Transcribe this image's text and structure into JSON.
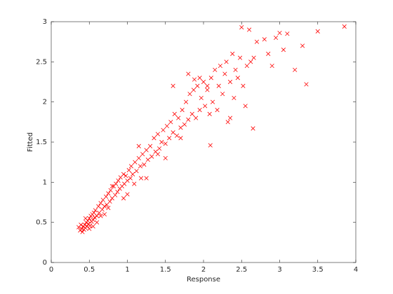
{
  "chart_data": {
    "type": "scatter",
    "marker": "x",
    "color": "#ff0000",
    "x_label": "Response",
    "y_label": "Fitted",
    "xlim": [
      0,
      4
    ],
    "xticks": [
      0,
      0.5,
      1,
      1.5,
      2,
      2.5,
      3,
      3.5,
      4
    ],
    "ylim": [
      0,
      3
    ],
    "yticks": [
      0,
      0.5,
      1,
      1.5,
      2,
      2.5,
      3
    ],
    "grid": false,
    "x": [
      0.36,
      0.38,
      0.4,
      0.41,
      0.42,
      0.43,
      0.44,
      0.45,
      0.46,
      0.47,
      0.48,
      0.49,
      0.5,
      0.51,
      0.52,
      0.53,
      0.54,
      0.55,
      0.56,
      0.57,
      0.58,
      0.6,
      0.62,
      0.63,
      0.65,
      0.67,
      0.68,
      0.7,
      0.72,
      0.73,
      0.75,
      0.77,
      0.78,
      0.8,
      0.82,
      0.84,
      0.85,
      0.87,
      0.88,
      0.9,
      0.91,
      0.93,
      0.95,
      0.96,
      0.98,
      1.0,
      1.02,
      1.04,
      1.05,
      1.07,
      1.09,
      1.1,
      1.12,
      1.15,
      1.17,
      1.18,
      1.2,
      1.22,
      1.25,
      1.27,
      1.3,
      1.32,
      1.35,
      1.37,
      1.4,
      1.42,
      1.45,
      1.47,
      1.5,
      1.52,
      1.55,
      1.57,
      1.6,
      1.62,
      1.65,
      1.67,
      1.7,
      1.72,
      1.75,
      1.77,
      1.8,
      1.82,
      1.85,
      1.87,
      1.9,
      1.92,
      1.95,
      1.97,
      2.0,
      2.02,
      2.05,
      2.08,
      2.1,
      2.12,
      2.15,
      2.18,
      2.2,
      2.22,
      2.25,
      2.28,
      2.3,
      2.32,
      2.35,
      2.38,
      2.4,
      2.42,
      2.45,
      2.48,
      2.5,
      2.52,
      2.55,
      2.57,
      2.6,
      2.62,
      2.65,
      2.66,
      2.7,
      2.8,
      2.85,
      2.9,
      2.95,
      3.0,
      3.05,
      3.1,
      3.2,
      3.3,
      3.35,
      3.5,
      3.85,
      2.09,
      2.35,
      1.6,
      1.8,
      1.25,
      1.0,
      0.95,
      0.7,
      0.6,
      1.5,
      1.4,
      1.15,
      1.7,
      1.95,
      2.05,
      1.88,
      0.8,
      0.55,
      0.45,
      0.5,
      0.39,
      0.65,
      0.75
    ],
    "values": [
      0.44,
      0.4,
      0.42,
      0.38,
      0.45,
      0.41,
      0.47,
      0.43,
      0.5,
      0.45,
      0.52,
      0.48,
      0.55,
      0.46,
      0.58,
      0.51,
      0.6,
      0.53,
      0.62,
      0.56,
      0.65,
      0.58,
      0.7,
      0.62,
      0.74,
      0.66,
      0.78,
      0.7,
      0.82,
      0.72,
      0.86,
      0.76,
      0.9,
      0.8,
      0.95,
      0.84,
      0.98,
      0.88,
      1.02,
      0.92,
      1.06,
      0.95,
      1.1,
      0.98,
      1.08,
      1.02,
      1.15,
      1.05,
      1.2,
      1.1,
      0.98,
      1.25,
      1.14,
      1.3,
      1.2,
      1.05,
      1.35,
      1.22,
      1.4,
      1.28,
      1.45,
      1.32,
      1.55,
      1.38,
      1.6,
      1.42,
      1.5,
      1.65,
      1.48,
      1.7,
      1.55,
      1.75,
      1.62,
      1.85,
      1.58,
      1.8,
      1.68,
      1.9,
      1.72,
      2.0,
      1.78,
      2.1,
      1.85,
      2.15,
      1.8,
      2.2,
      1.9,
      2.05,
      2.25,
      1.95,
      2.15,
      1.85,
      2.3,
      2.0,
      2.4,
      1.9,
      2.2,
      2.45,
      2.1,
      2.35,
      2.5,
      1.75,
      2.25,
      2.6,
      2.05,
      2.4,
      2.3,
      2.55,
      2.93,
      2.2,
      1.95,
      2.45,
      2.9,
      2.5,
      1.67,
      2.55,
      2.75,
      2.78,
      2.6,
      2.45,
      2.8,
      2.86,
      2.65,
      2.85,
      2.4,
      2.7,
      2.22,
      2.88,
      2.94,
      1.46,
      1.8,
      2.2,
      2.35,
      1.05,
      0.85,
      0.8,
      0.6,
      0.5,
      1.3,
      1.35,
      1.45,
      1.55,
      2.3,
      2.2,
      2.28,
      0.95,
      0.45,
      0.55,
      0.42,
      0.47,
      0.58,
      0.68
    ]
  }
}
